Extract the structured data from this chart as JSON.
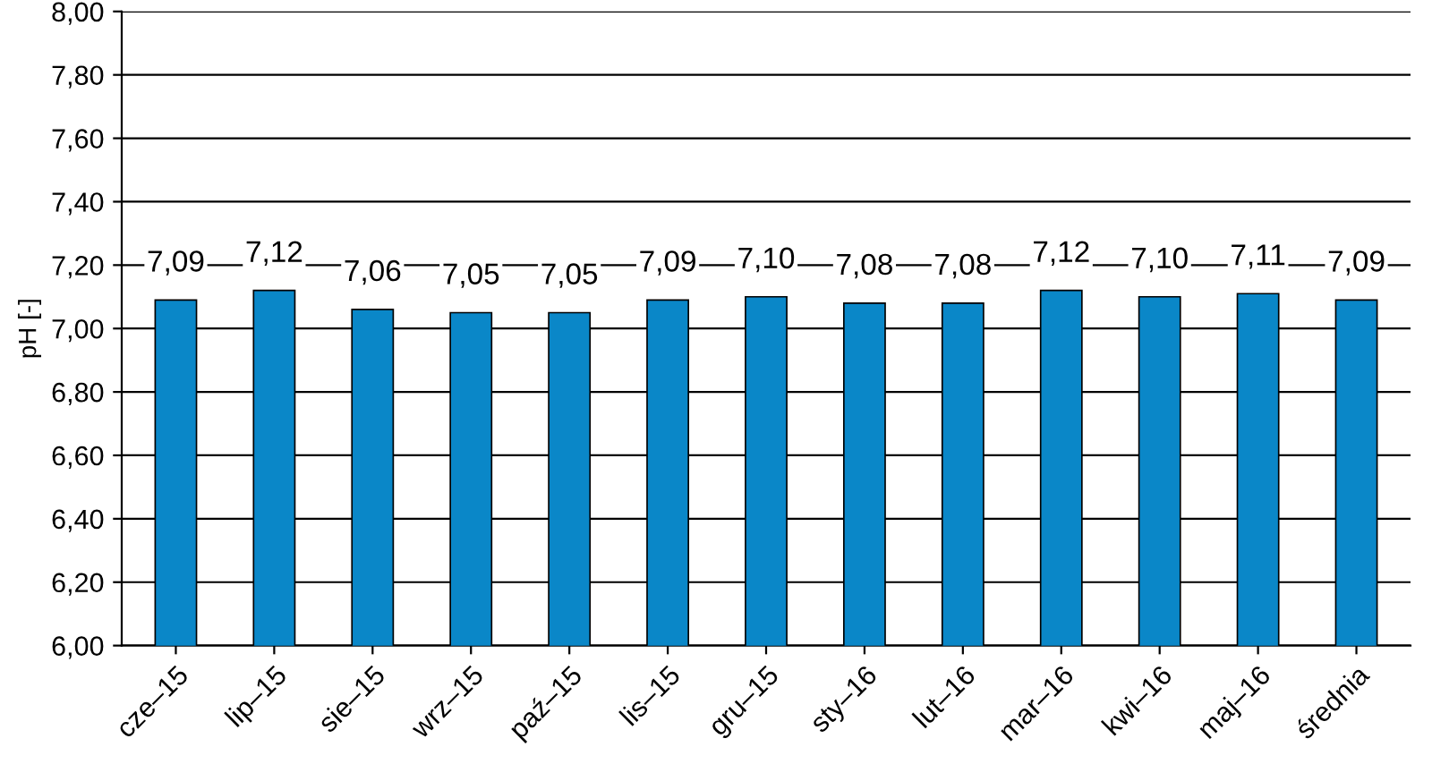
{
  "chart_data": {
    "type": "bar",
    "ylabel": "pH [-]",
    "categories": [
      "cze–15",
      "lip–15",
      "sie–15",
      "wrz–15",
      "paź–15",
      "lis–15",
      "gru–15",
      "sty–16",
      "lut–16",
      "mar–16",
      "kwi–16",
      "maj–16",
      "średnia"
    ],
    "values": [
      7.09,
      7.12,
      7.06,
      7.05,
      7.05,
      7.09,
      7.1,
      7.08,
      7.08,
      7.12,
      7.1,
      7.11,
      7.09
    ],
    "value_labels": [
      "7,09",
      "7,12",
      "7,06",
      "7,05",
      "7,05",
      "7,09",
      "7,10",
      "7,08",
      "7,08",
      "7,12",
      "7,10",
      "7,11",
      "7,09"
    ],
    "color": "#0a87c8",
    "ylim": [
      6,
      8
    ],
    "yticks": [
      {
        "value": 6,
        "label": "6,00"
      },
      {
        "value": 6.2,
        "label": "6,20"
      },
      {
        "value": 6.4,
        "label": "6,40"
      },
      {
        "value": 6.6,
        "label": "6,60"
      },
      {
        "value": 6.8,
        "label": "6,80"
      },
      {
        "value": 7,
        "label": "7,00"
      },
      {
        "value": 7.2,
        "label": "7,20"
      },
      {
        "value": 7.4,
        "label": "7,40"
      },
      {
        "value": 7.6,
        "label": "7,60"
      },
      {
        "value": 7.8,
        "label": "7,80"
      },
      {
        "value": 8,
        "label": "8,00"
      }
    ],
    "grid": "y",
    "legend": false
  }
}
